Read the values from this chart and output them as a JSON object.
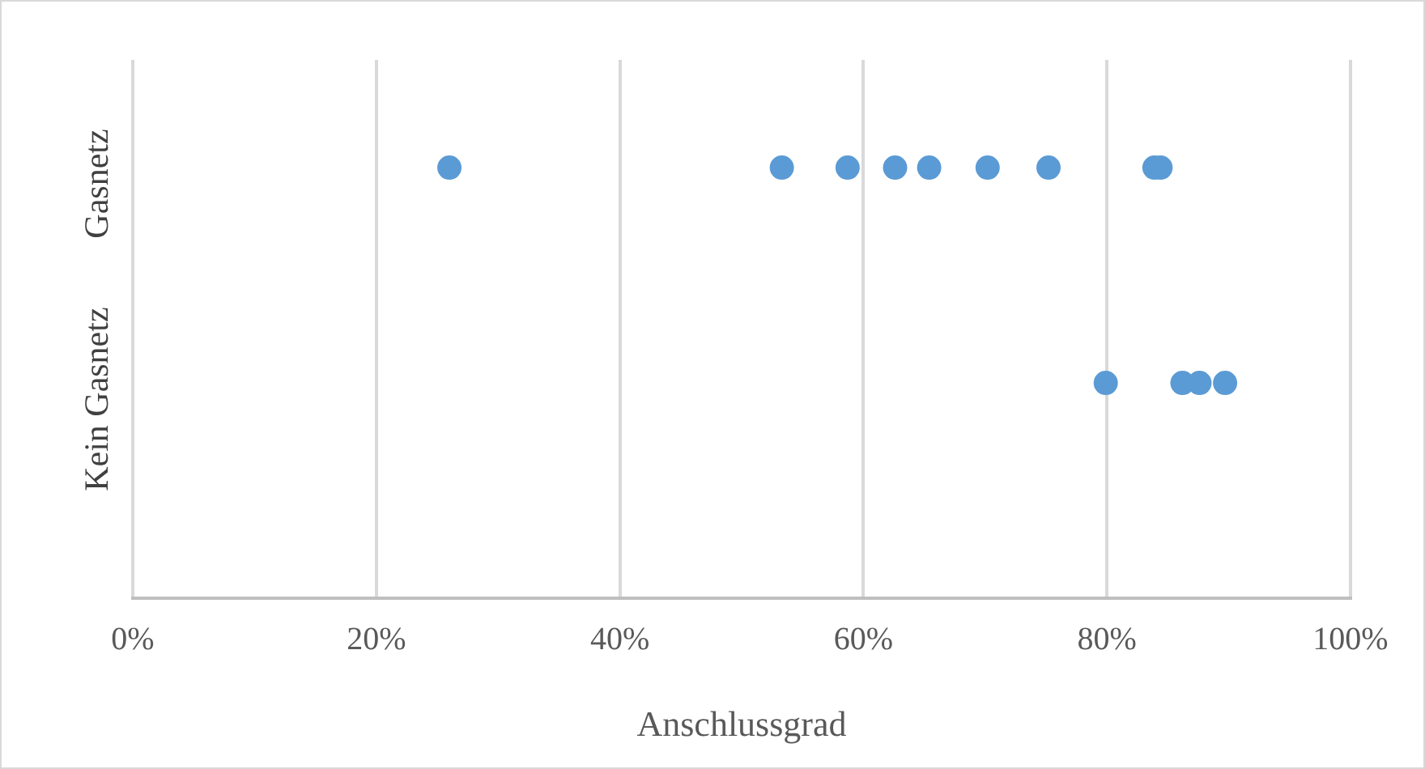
{
  "chart_data": {
    "type": "scatter",
    "orientation": "horizontal",
    "categories": [
      "Gasnetz",
      "Kein Gasnetz"
    ],
    "series": [
      {
        "color": "#5b9bd5",
        "x": [
          "Gasnetz",
          "Gasnetz",
          "Gasnetz",
          "Gasnetz",
          "Gasnetz",
          "Gasnetz",
          "Gasnetz",
          "Gasnetz",
          "Gasnetz",
          "Kein Gasnetz",
          "Kein Gasnetz",
          "Kein Gasnetz",
          "Kein Gasnetz"
        ],
        "values": [
          26,
          53.3,
          58.7,
          62.6,
          65.4,
          70.2,
          75.2,
          83.9,
          84.4,
          79.9,
          86.2,
          87.6,
          89.7
        ]
      }
    ],
    "xlabel": "Anschlussgrad",
    "xlim": [
      0,
      100
    ],
    "xticks": [
      {
        "value": 0,
        "label": "0%"
      },
      {
        "value": 20,
        "label": "20%"
      },
      {
        "value": 40,
        "label": "40%"
      },
      {
        "value": 60,
        "label": "60%"
      },
      {
        "value": 80,
        "label": "80%"
      },
      {
        "value": 100,
        "label": "100%"
      }
    ],
    "grid": "x",
    "legend": false,
    "marker": "circle"
  }
}
